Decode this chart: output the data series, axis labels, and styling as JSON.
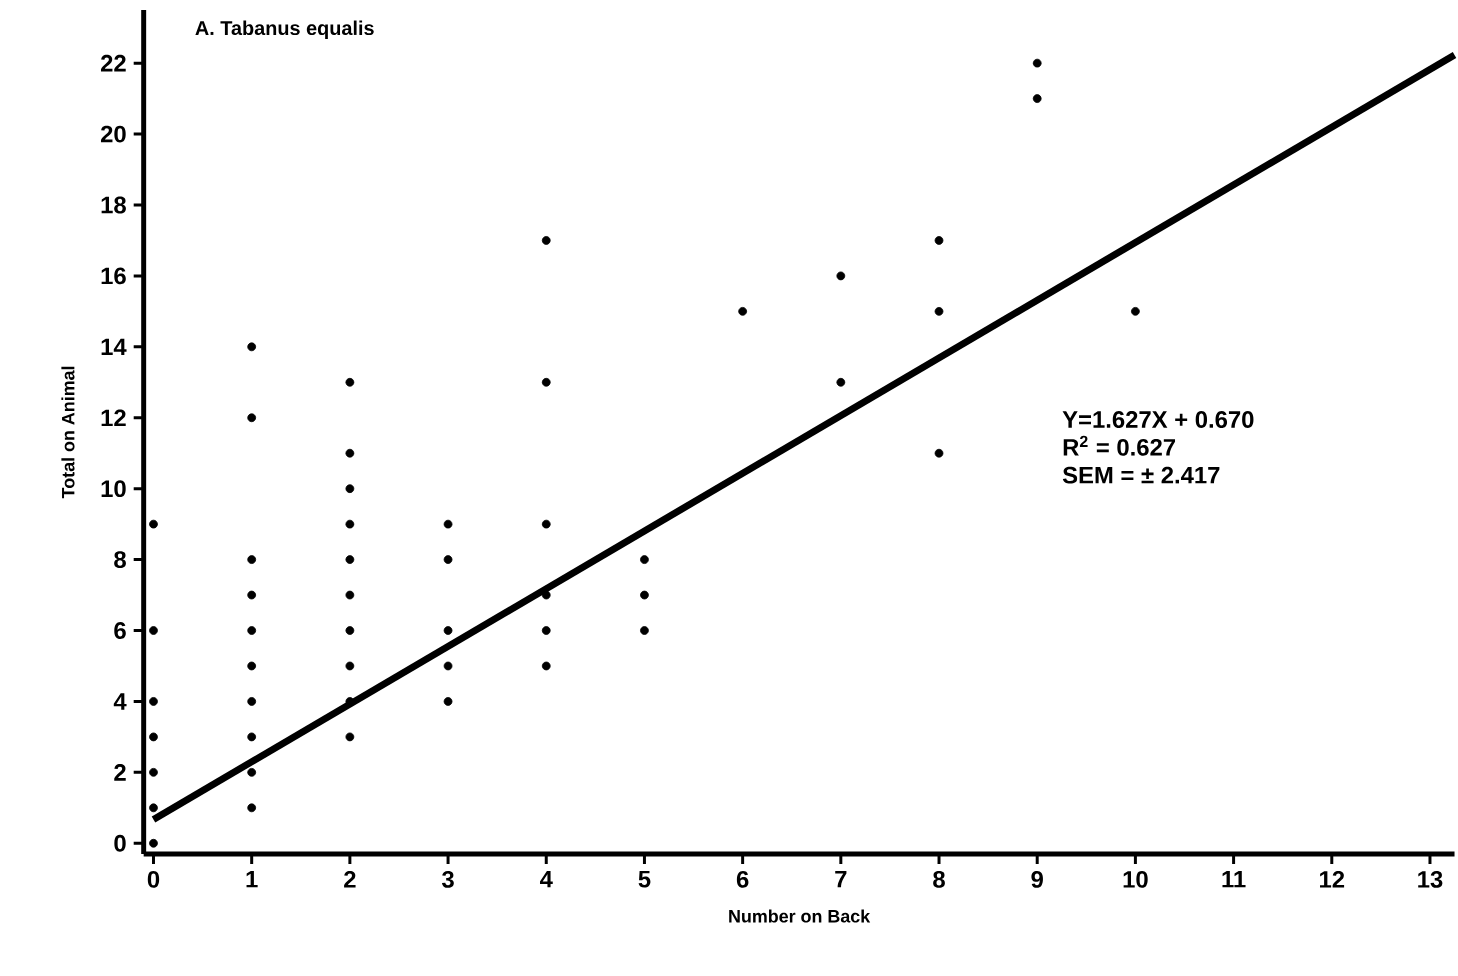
{
  "chart_data": {
    "type": "scatter",
    "title": "A. Tabanus equalis",
    "xlabel": "Number on Back",
    "ylabel": "Total on Animal",
    "xlim": [
      -0.1,
      13.25
    ],
    "ylim": [
      -0.3,
      23.5
    ],
    "xticks": [
      0,
      1,
      2,
      3,
      4,
      5,
      6,
      7,
      8,
      9,
      10,
      11,
      12,
      13
    ],
    "yticks": [
      0,
      2,
      4,
      6,
      8,
      10,
      12,
      14,
      16,
      18,
      20,
      22
    ],
    "grid": false,
    "series": [
      {
        "marker": "circle",
        "color": "#000000",
        "x": [
          0,
          0,
          0,
          0,
          0,
          0,
          0,
          1,
          1,
          1,
          1,
          1,
          1,
          1,
          1,
          1,
          1,
          2,
          2,
          2,
          2,
          2,
          2,
          2,
          2,
          2,
          2,
          3,
          3,
          3,
          3,
          3,
          4,
          4,
          4,
          4,
          4,
          4,
          5,
          5,
          5,
          6,
          7,
          7,
          8,
          8,
          8,
          9,
          9,
          10
        ],
        "values": [
          0,
          1,
          2,
          3,
          4,
          6,
          9,
          14,
          12,
          8,
          7,
          6,
          5,
          4,
          3,
          2,
          1,
          13,
          11,
          10,
          9,
          8,
          7,
          6,
          5,
          4,
          3,
          9,
          8,
          6,
          5,
          4,
          17,
          13,
          9,
          7,
          6,
          5,
          8,
          7,
          6,
          15,
          16,
          13,
          17,
          15,
          11,
          22,
          21,
          15
        ]
      },
      {
        "type": "line",
        "marker": "none",
        "color": "#000000",
        "x": [
          0,
          13.25
        ],
        "values": [
          0.67,
          22.23
        ]
      }
    ],
    "annotations": [
      "Y=1.627X + 0.670",
      "R$^{2}$ = 0.627",
      "SEM = ± 2.417"
    ]
  }
}
